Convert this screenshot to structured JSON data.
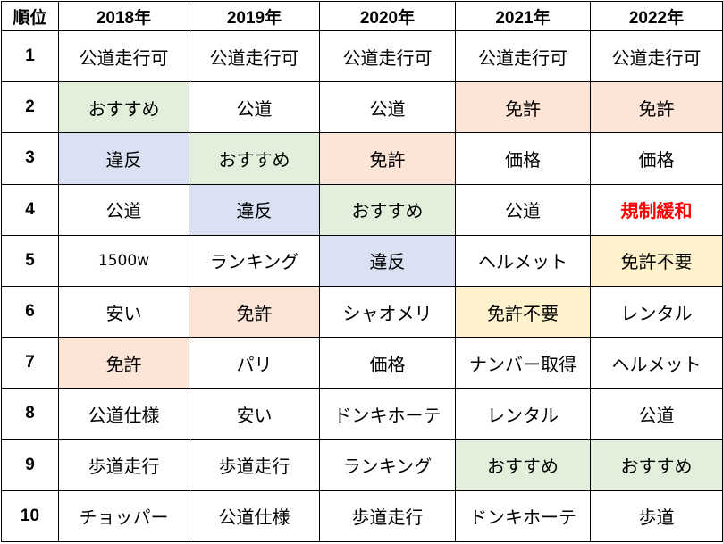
{
  "headers": [
    "順位",
    "2018年",
    "2019年",
    "2020年",
    "2021年",
    "2022年"
  ],
  "colors": {
    "green": "#e2efda",
    "blue": "#d9e1f2",
    "orange": "#fce4d6",
    "yellow": "#fff2cc",
    "red_text": "#ff0000"
  },
  "rows": [
    {
      "rank": "1",
      "cells": [
        {
          "text": "公道走行可"
        },
        {
          "text": "公道走行可"
        },
        {
          "text": "公道走行可"
        },
        {
          "text": "公道走行可"
        },
        {
          "text": "公道走行可"
        }
      ]
    },
    {
      "rank": "2",
      "cells": [
        {
          "text": "おすすめ",
          "hl": "green"
        },
        {
          "text": "公道"
        },
        {
          "text": "公道"
        },
        {
          "text": "免許",
          "hl": "orange"
        },
        {
          "text": "免許",
          "hl": "orange"
        }
      ]
    },
    {
      "rank": "3",
      "cells": [
        {
          "text": "違反",
          "hl": "blue"
        },
        {
          "text": "おすすめ",
          "hl": "green"
        },
        {
          "text": "免許",
          "hl": "orange"
        },
        {
          "text": "価格"
        },
        {
          "text": "価格"
        }
      ]
    },
    {
      "rank": "4",
      "cells": [
        {
          "text": "公道"
        },
        {
          "text": "違反",
          "hl": "blue"
        },
        {
          "text": "おすすめ",
          "hl": "green"
        },
        {
          "text": "公道"
        },
        {
          "text": "規制緩和",
          "hl": "red"
        }
      ]
    },
    {
      "rank": "5",
      "cells": [
        {
          "text": "1500w",
          "num": true
        },
        {
          "text": "ランキング"
        },
        {
          "text": "違反",
          "hl": "blue"
        },
        {
          "text": "ヘルメット"
        },
        {
          "text": "免許不要",
          "hl": "yellow"
        }
      ]
    },
    {
      "rank": "6",
      "cells": [
        {
          "text": "安い"
        },
        {
          "text": "免許",
          "hl": "orange"
        },
        {
          "text": "シャオメリ"
        },
        {
          "text": "免許不要",
          "hl": "yellow"
        },
        {
          "text": "レンタル"
        }
      ]
    },
    {
      "rank": "7",
      "cells": [
        {
          "text": "免許",
          "hl": "orange"
        },
        {
          "text": "パリ"
        },
        {
          "text": "価格"
        },
        {
          "text": "ナンバー取得"
        },
        {
          "text": "ヘルメット"
        }
      ]
    },
    {
      "rank": "8",
      "cells": [
        {
          "text": "公道仕様"
        },
        {
          "text": "安い"
        },
        {
          "text": "ドンキホーテ"
        },
        {
          "text": "レンタル"
        },
        {
          "text": "公道"
        }
      ]
    },
    {
      "rank": "9",
      "cells": [
        {
          "text": "歩道走行"
        },
        {
          "text": "歩道走行"
        },
        {
          "text": "ランキング"
        },
        {
          "text": "おすすめ",
          "hl": "green"
        },
        {
          "text": "おすすめ",
          "hl": "green"
        }
      ]
    },
    {
      "rank": "10",
      "cells": [
        {
          "text": "チョッパー"
        },
        {
          "text": "公道仕様"
        },
        {
          "text": "歩道走行"
        },
        {
          "text": "ドンキホーテ"
        },
        {
          "text": "歩道"
        }
      ]
    }
  ]
}
